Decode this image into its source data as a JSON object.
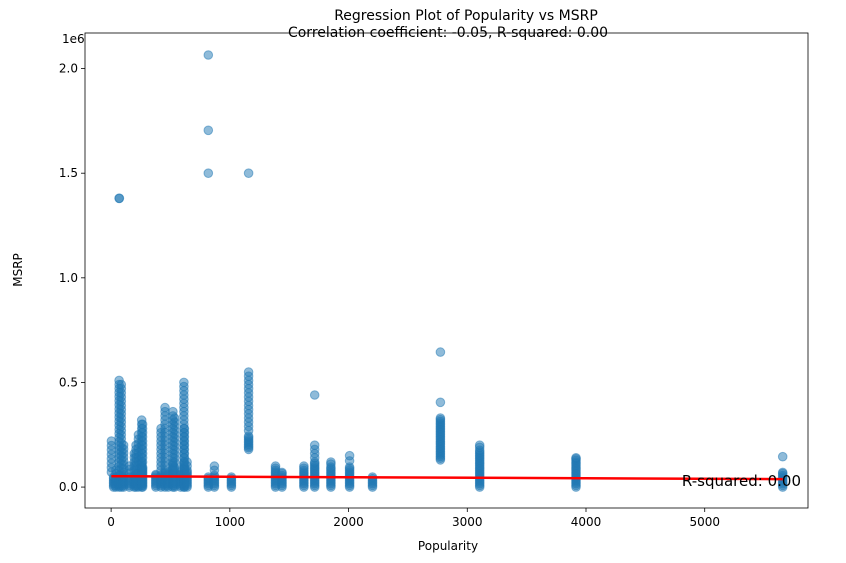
{
  "chart_data": {
    "type": "scatter",
    "title": "Regression Plot of Popularity vs MSRP",
    "subtitle": "Correlation coefficient: -0.05, R-squared: 0.00",
    "xlabel": "Popularity",
    "ylabel": "MSRP",
    "y_offset_label": "1e6",
    "xlim": [
      -220,
      5870
    ],
    "ylim": [
      -0.1,
      2.17
    ],
    "xticks": [
      0,
      1000,
      2000,
      3000,
      4000,
      5000
    ],
    "xtick_labels": [
      "0",
      "1000",
      "2000",
      "3000",
      "4000",
      "5000"
    ],
    "yticks": [
      0.0,
      0.5,
      1.0,
      1.5,
      2.0
    ],
    "ytick_labels": [
      "0.0",
      "0.5",
      "1.0",
      "1.5",
      "2.0"
    ],
    "grid": false,
    "point_color": "#1f77b4",
    "line_color": "#ff0000",
    "annotation": "R-squared: 0.00",
    "regression_line": {
      "x": [
        2,
        5657
      ],
      "y": [
        0.052,
        0.038
      ]
    },
    "columns": [
      {
        "x": 2,
        "min": 0.2,
        "max": 0.22,
        "dense": 0.05
      },
      {
        "x": 21,
        "min": 0.0,
        "max": 0.05,
        "dense": 0.05
      },
      {
        "x": 40,
        "min": 0.0,
        "max": 0.08,
        "dense": 0.05
      },
      {
        "x": 67,
        "min": 0.0,
        "max": 0.51,
        "dense": 0.06
      },
      {
        "x": 86,
        "min": 0.0,
        "max": 0.49,
        "dense": 0.07
      },
      {
        "x": 105,
        "min": 0.0,
        "max": 0.2,
        "dense": 0.05
      },
      {
        "x": 155,
        "min": 0.0,
        "max": 0.1,
        "dense": 0.05
      },
      {
        "x": 195,
        "min": 0.0,
        "max": 0.16,
        "dense": 0.06
      },
      {
        "x": 210,
        "min": 0.0,
        "max": 0.2,
        "dense": 0.06
      },
      {
        "x": 230,
        "min": 0.0,
        "max": 0.25,
        "dense": 0.08
      },
      {
        "x": 258,
        "min": 0.0,
        "max": 0.32,
        "dense": 0.12
      },
      {
        "x": 265,
        "min": 0.0,
        "max": 0.3,
        "dense": 0.1
      },
      {
        "x": 376,
        "min": 0.0,
        "max": 0.06,
        "dense": 0.05
      },
      {
        "x": 420,
        "min": 0.0,
        "max": 0.28,
        "dense": 0.06
      },
      {
        "x": 454,
        "min": 0.0,
        "max": 0.38,
        "dense": 0.08
      },
      {
        "x": 481,
        "min": 0.0,
        "max": 0.06,
        "dense": 0.05
      },
      {
        "x": 520,
        "min": 0.0,
        "max": 0.36,
        "dense": 0.12
      },
      {
        "x": 535,
        "min": 0.0,
        "max": 0.33,
        "dense": 0.1
      },
      {
        "x": 586,
        "min": 0.0,
        "max": 0.06,
        "dense": 0.05
      },
      {
        "x": 613,
        "min": 0.0,
        "max": 0.5,
        "dense": 0.12
      },
      {
        "x": 617,
        "min": 0.0,
        "max": 0.28,
        "dense": 0.1
      },
      {
        "x": 640,
        "min": 0.0,
        "max": 0.12,
        "dense": 0.08
      },
      {
        "x": 819,
        "min": 0.0,
        "max": 0.05,
        "dense": 0.05
      },
      {
        "x": 870,
        "min": 0.0,
        "max": 0.1,
        "dense": 0.06
      },
      {
        "x": 1013,
        "min": 0.0,
        "max": 0.05,
        "dense": 0.05
      },
      {
        "x": 1158,
        "min": 0.18,
        "max": 0.55,
        "dense": 0.25
      },
      {
        "x": 1385,
        "min": 0.0,
        "max": 0.1,
        "dense": 0.08
      },
      {
        "x": 1439,
        "min": 0.0,
        "max": 0.07,
        "dense": 0.06
      },
      {
        "x": 1624,
        "min": 0.0,
        "max": 0.1,
        "dense": 0.08
      },
      {
        "x": 1715,
        "min": 0.0,
        "max": 0.2,
        "dense": 0.12
      },
      {
        "x": 1851,
        "min": 0.0,
        "max": 0.12,
        "dense": 0.1
      },
      {
        "x": 2009,
        "min": 0.0,
        "max": 0.15,
        "dense": 0.1
      },
      {
        "x": 2202,
        "min": 0.0,
        "max": 0.05,
        "dense": 0.05
      },
      {
        "x": 2774,
        "min": 0.13,
        "max": 0.33,
        "dense": 0.33
      },
      {
        "x": 3105,
        "min": 0.0,
        "max": 0.2,
        "dense": 0.18
      },
      {
        "x": 3916,
        "min": 0.0,
        "max": 0.14,
        "dense": 0.13
      },
      {
        "x": 5657,
        "min": 0.0,
        "max": 0.07,
        "dense": 0.06
      }
    ],
    "outliers": [
      {
        "x": 67,
        "y": 1.38
      },
      {
        "x": 70,
        "y": 1.38
      },
      {
        "x": 819,
        "y": 2.065
      },
      {
        "x": 819,
        "y": 1.705
      },
      {
        "x": 819,
        "y": 1.5
      },
      {
        "x": 1158,
        "y": 1.5
      },
      {
        "x": 1715,
        "y": 0.44
      },
      {
        "x": 2774,
        "y": 0.645
      },
      {
        "x": 2774,
        "y": 0.405
      },
      {
        "x": 5657,
        "y": 0.145
      }
    ]
  }
}
